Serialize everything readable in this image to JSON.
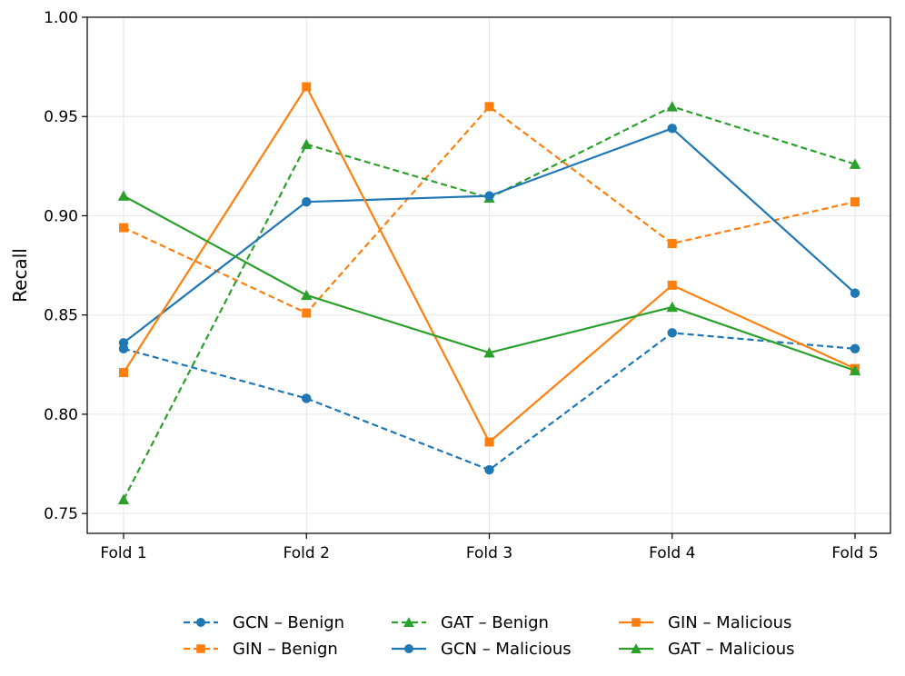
{
  "chart_data": {
    "type": "line",
    "title": "",
    "xlabel": "",
    "ylabel": "Recall",
    "ylim": [
      0.74,
      1.0
    ],
    "yticks": [
      "0.75",
      "0.80",
      "0.85",
      "0.90",
      "0.95",
      "1.00"
    ],
    "ytick_values": [
      0.75,
      0.8,
      0.85,
      0.9,
      0.95,
      1.0
    ],
    "categories": [
      "Fold 1",
      "Fold 2",
      "Fold 3",
      "Fold 4",
      "Fold 5"
    ],
    "grid": true,
    "legend_position": "bottom-center",
    "series": [
      {
        "name": "GCN – Benign",
        "values": [
          0.833,
          0.808,
          0.772,
          0.841,
          0.833
        ],
        "color": "#1f77b4",
        "style": "dashed",
        "marker": "circle"
      },
      {
        "name": "GIN – Benign",
        "values": [
          0.894,
          0.851,
          0.955,
          0.886,
          0.907
        ],
        "color": "#ff7f0e",
        "style": "dashed",
        "marker": "square"
      },
      {
        "name": "GAT – Benign",
        "values": [
          0.757,
          0.936,
          0.909,
          0.955,
          0.926
        ],
        "color": "#2ca02c",
        "style": "dashed",
        "marker": "triangle"
      },
      {
        "name": "GCN – Malicious",
        "values": [
          0.836,
          0.907,
          0.91,
          0.944,
          0.861
        ],
        "color": "#1f77b4",
        "style": "solid",
        "marker": "circle"
      },
      {
        "name": "GIN – Malicious",
        "values": [
          0.821,
          0.965,
          0.786,
          0.865,
          0.823
        ],
        "color": "#ff7f0e",
        "style": "solid",
        "marker": "square"
      },
      {
        "name": "GAT – Malicious",
        "values": [
          0.91,
          0.86,
          0.831,
          0.854,
          0.822
        ],
        "color": "#2ca02c",
        "style": "solid",
        "marker": "triangle"
      }
    ]
  }
}
